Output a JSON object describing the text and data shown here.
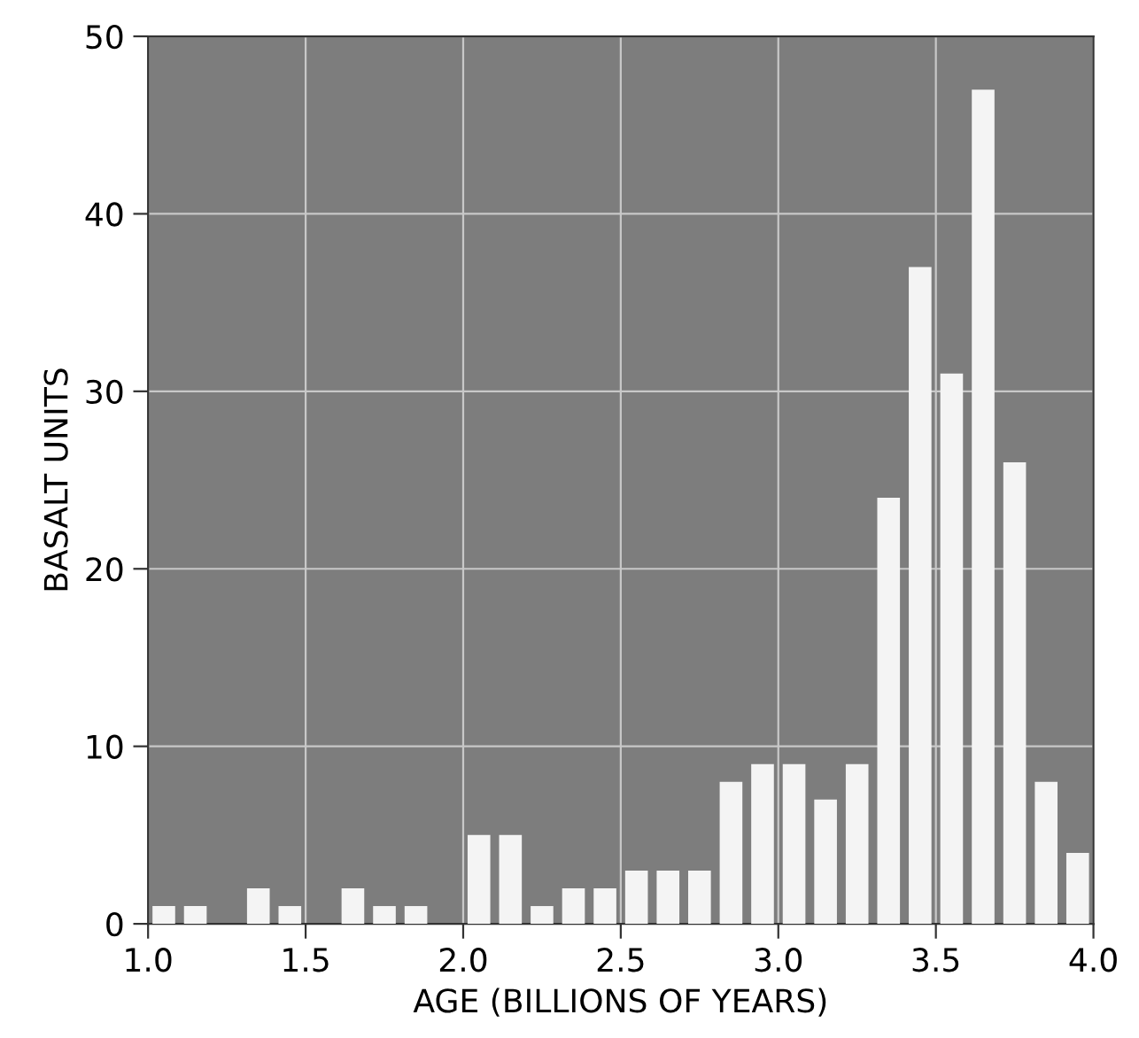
{
  "chart_data": {
    "type": "histogram",
    "xlabel": "AGE (BILLIONS OF YEARS)",
    "ylabel": "BASALT UNITS",
    "bins": [
      1.0,
      1.1,
      1.2,
      1.3,
      1.4,
      1.5,
      1.6,
      1.7,
      1.8,
      1.9,
      2.0,
      2.1,
      2.2,
      2.3,
      2.4,
      2.5,
      2.6,
      2.7,
      2.8,
      2.9,
      3.0,
      3.1,
      3.2,
      3.3,
      3.4,
      3.5,
      3.6,
      3.7,
      3.8,
      3.9,
      4.0
    ],
    "values": [
      1,
      1,
      0,
      2,
      1,
      0,
      2,
      1,
      1,
      0,
      5,
      5,
      1,
      2,
      2,
      3,
      3,
      3,
      8,
      9,
      9,
      7,
      9,
      24,
      37,
      31,
      47,
      26,
      8,
      4
    ],
    "color": "#f4f4f4",
    "xlim": [
      1.0,
      4.0
    ],
    "ylim": [
      0,
      50
    ],
    "xticks": [
      {
        "value": 1.0,
        "label": "1.0"
      },
      1.5,
      {
        "value": 2.0,
        "label": "2.0"
      },
      2.5,
      {
        "value": 3.0,
        "label": "3.0"
      },
      3.5,
      {
        "value": 4.0,
        "label": "4.0"
      }
    ],
    "yticks": [
      0,
      10,
      20,
      30,
      40,
      50
    ],
    "grid": true
  }
}
